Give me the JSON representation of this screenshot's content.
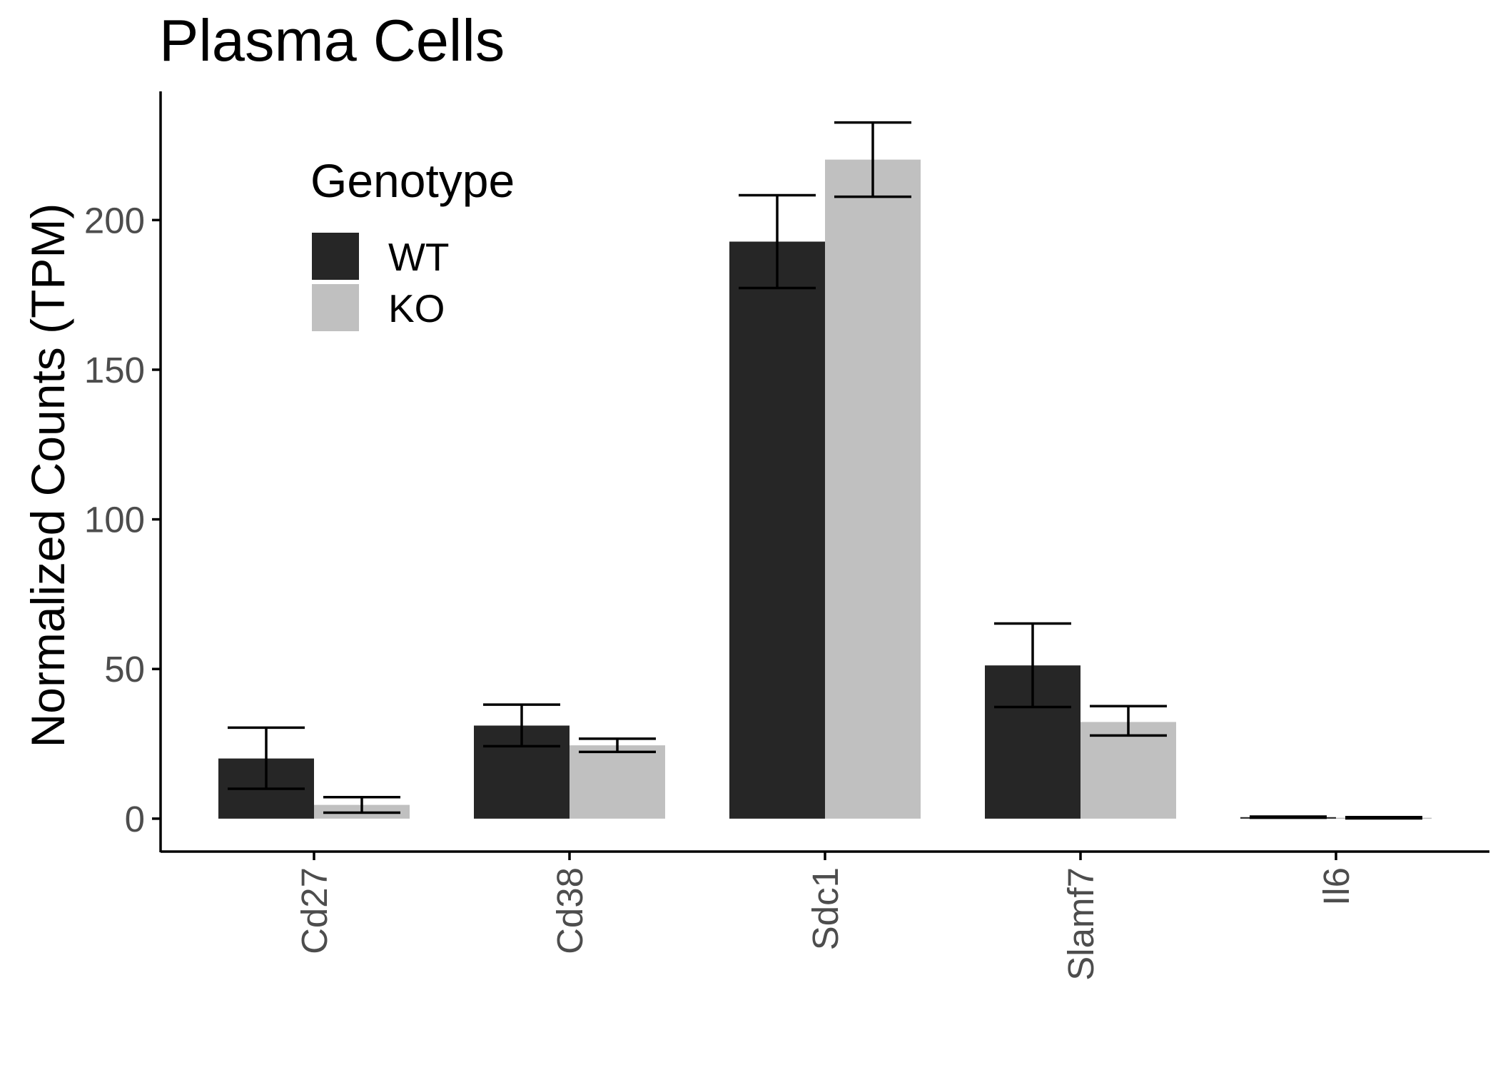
{
  "chart_data": {
    "type": "bar",
    "title": "Plasma Cells",
    "xlabel": "",
    "ylabel": "Normalized Counts (TPM)",
    "ylim": [
      -11,
      243
    ],
    "yticks": [
      0,
      50,
      100,
      150,
      200
    ],
    "categories": [
      "Cd27",
      "Cd38",
      "Sdc1",
      "Slamf7",
      "Il6"
    ],
    "series": [
      {
        "name": "WT",
        "color": "#262626",
        "values": [
          20.1,
          31.1,
          192.8,
          51.2,
          0.5
        ],
        "error_low": [
          10.0,
          24.2,
          177.3,
          37.3,
          0.3
        ],
        "error_high": [
          30.4,
          38.1,
          208.3,
          65.2,
          0.7
        ]
      },
      {
        "name": "KO",
        "color": "#c0c0c0",
        "values": [
          4.6,
          24.5,
          220.2,
          32.3,
          0.3
        ],
        "error_low": [
          2.0,
          22.3,
          207.8,
          27.8,
          0.1
        ],
        "error_high": [
          7.2,
          26.7,
          232.6,
          37.6,
          0.5
        ]
      }
    ],
    "legend": {
      "title": "Genotype",
      "position": "top-left inside"
    },
    "grid": false
  }
}
